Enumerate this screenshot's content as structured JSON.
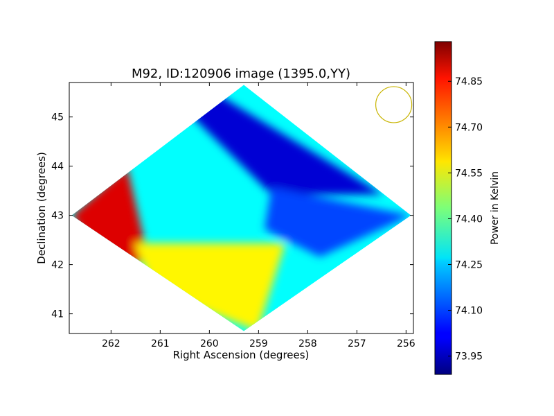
{
  "chart_data": {
    "type": "heatmap",
    "title": "M92, ID:120906 image (1395.0,YY)",
    "xlabel": "Right Ascension (degrees)",
    "ylabel": "Declination (degrees)",
    "xlim": [
      262.85,
      255.85
    ],
    "ylim": [
      40.6,
      45.7
    ],
    "x_ticks": [
      262,
      261,
      260,
      259,
      258,
      257,
      256
    ],
    "y_ticks": [
      41,
      42,
      43,
      44,
      45
    ],
    "colorbar": {
      "label": "Power in Kelvin",
      "range": [
        73.89,
        74.98
      ],
      "ticks": [
        "73.95",
        "74.10",
        "74.25",
        "74.40",
        "74.55",
        "74.70",
        "74.85"
      ],
      "colormap": "jet"
    },
    "beam_marker": {
      "ra": 256.25,
      "dec": 45.25,
      "color": "#c8b400"
    },
    "field_extent": {
      "ra_min": 262.8,
      "ra_max": 255.9,
      "dec_min": 40.65,
      "dec_max": 45.65,
      "center_ra": 259.3,
      "center_dec": 43.0
    },
    "field_values": {
      "east_edge": 74.88,
      "south_edge": 74.58,
      "north_edge": 73.98,
      "west_edge": 74.1,
      "center": 74.3
    }
  }
}
